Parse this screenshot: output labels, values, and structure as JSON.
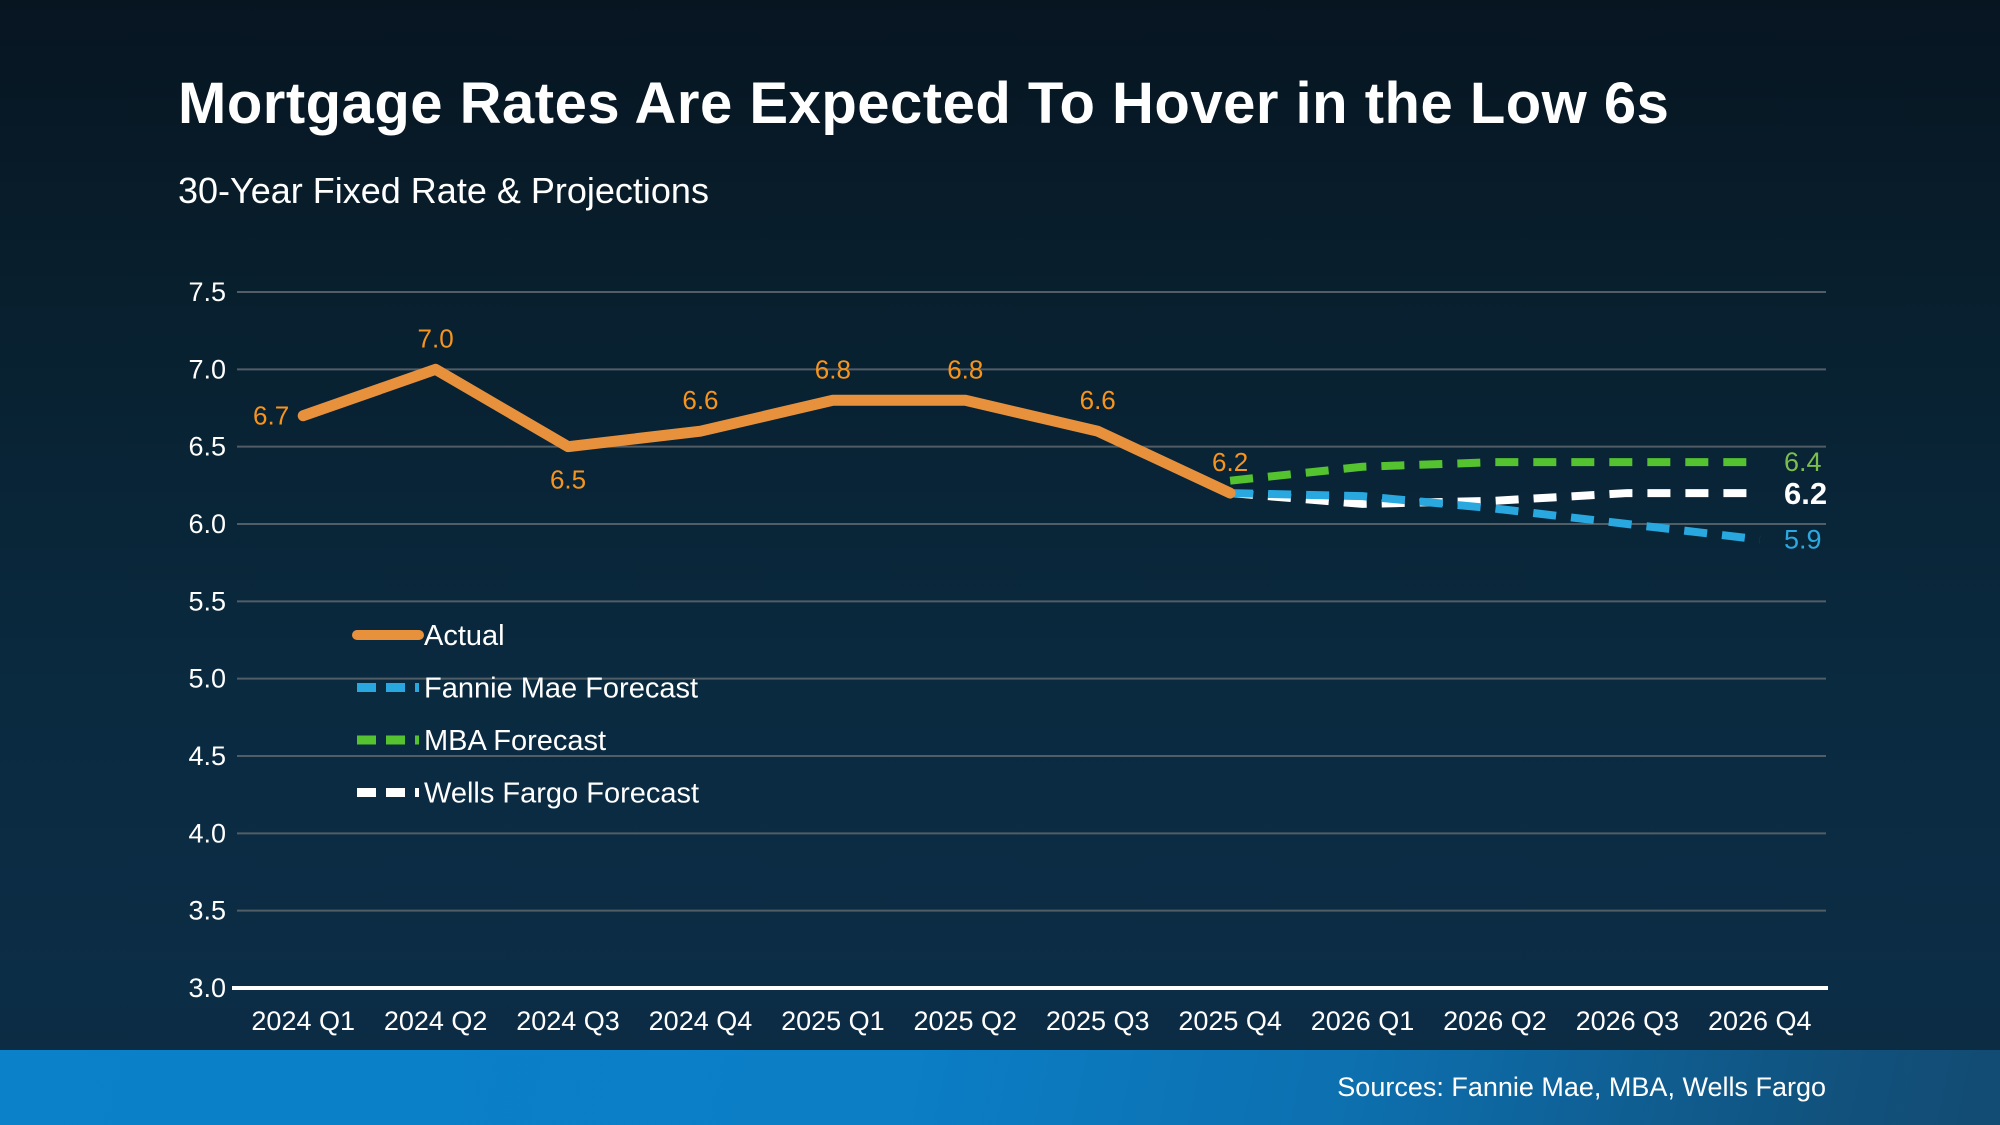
{
  "header": {
    "title": "Mortgage Rates Are Expected To Hover in the Low 6s",
    "subtitle": "30-Year Fixed Rate & Projections"
  },
  "footer": {
    "sources": "Sources: Fannie Mae, MBA, Wells Fargo"
  },
  "colors": {
    "background_top": "#071521",
    "background_bottom": "#0c2d46",
    "gridline": "#525d66",
    "axis_line": "#ffffff",
    "actual_line": "#E8913D",
    "actual_label": "#F7941D",
    "fannie_line": "#29A8E0",
    "mba_line": "#54C32F",
    "wells_line": "#FFFFFF",
    "footer_blue": "#0a81c9"
  },
  "chart_data": {
    "type": "line",
    "title": "Mortgage Rates Are Expected To Hover in the Low 6s",
    "subtitle": "30-Year Fixed Rate & Projections",
    "categories": [
      "2024 Q1",
      "2024 Q2",
      "2024 Q3",
      "2024 Q4",
      "2025 Q1",
      "2025 Q2",
      "2025 Q3",
      "2025 Q4",
      "2026 Q1",
      "2026 Q2",
      "2026 Q3",
      "2026 Q4"
    ],
    "ylim": [
      3.0,
      7.5
    ],
    "yticks": [
      "7.5",
      "7.0",
      "6.5",
      "6.0",
      "5.5",
      "5.0",
      "4.5",
      "4.0",
      "3.5",
      "3.0"
    ],
    "grid": true,
    "legend_position": "center-left",
    "series": [
      {
        "name": "Actual",
        "style": "solid",
        "color": "#E8913D",
        "label_color": "#F7941D",
        "values": [
          6.7,
          7.0,
          6.5,
          6.6,
          6.8,
          6.8,
          6.6,
          6.2,
          null,
          null,
          null,
          null
        ],
        "point_labels": [
          "6.7",
          "7.0",
          "6.5",
          "6.6",
          "6.8",
          "6.8",
          "6.6",
          "6.2",
          null,
          null,
          null,
          null
        ],
        "label_placement": [
          "left",
          "above",
          "below",
          "above",
          "above",
          "above",
          "above",
          "above",
          null,
          null,
          null,
          null
        ]
      },
      {
        "name": "Fannie Mae Forecast",
        "style": "dashed",
        "color": "#29A8E0",
        "values": [
          null,
          null,
          null,
          null,
          null,
          null,
          null,
          6.2,
          6.18,
          6.1,
          6.0,
          5.9
        ],
        "end_label": "5.9",
        "end_label_color": "#2CA9E1",
        "end_label_bold": false
      },
      {
        "name": "MBA Forecast",
        "style": "dashed",
        "color": "#54C32F",
        "values": [
          null,
          null,
          null,
          null,
          null,
          null,
          null,
          6.28,
          6.37,
          6.4,
          6.4,
          6.4
        ],
        "end_label": "6.4",
        "end_label_color": "#7CBE4D",
        "end_label_bold": false
      },
      {
        "name": "Wells Fargo Forecast",
        "style": "dashed",
        "color": "#FFFFFF",
        "values": [
          null,
          null,
          null,
          null,
          null,
          null,
          null,
          6.2,
          6.13,
          6.15,
          6.2,
          6.2
        ],
        "end_label": "6.2",
        "end_label_color": "#FFFFFF",
        "end_label_bold": true
      }
    ]
  }
}
